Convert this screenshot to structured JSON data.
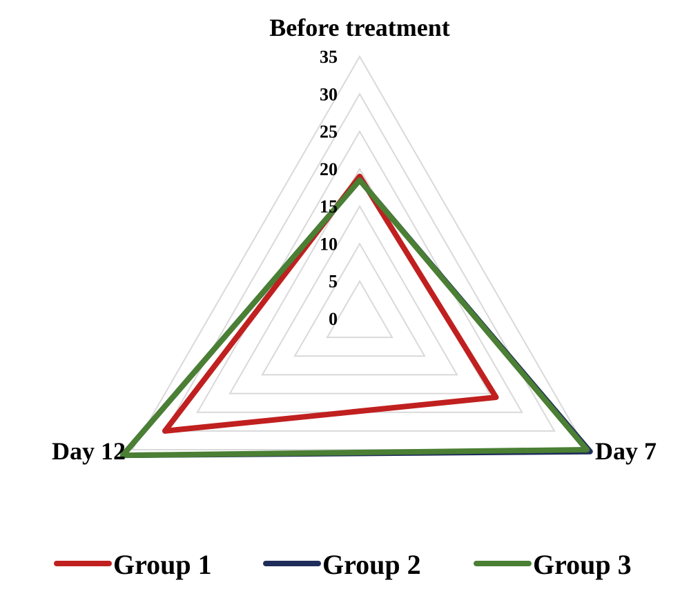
{
  "chart_data": {
    "type": "radar",
    "categories": [
      "Before treatment",
      "Day 7",
      "Day 12"
    ],
    "rmin": 0,
    "rmax": 35,
    "ticks": [
      0,
      5,
      10,
      15,
      20,
      25,
      30,
      35
    ],
    "grid": true,
    "legend_position": "bottom",
    "series": [
      {
        "name": "Group 1",
        "color": "#c0201f",
        "values": [
          19,
          21,
          30
        ]
      },
      {
        "name": "Group 2",
        "color": "#1f2d5a",
        "values": [
          18.5,
          35.5,
          36.5
        ]
      },
      {
        "name": "Group 3",
        "color": "#4a7f34",
        "values": [
          18.5,
          35,
          36.5
        ]
      }
    ]
  }
}
